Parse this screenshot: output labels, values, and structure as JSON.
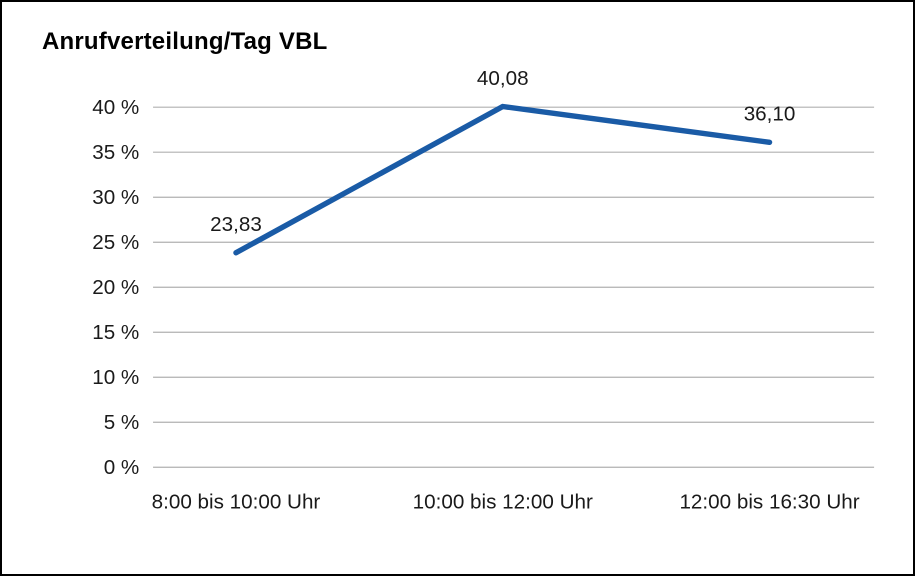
{
  "chart_data": {
    "type": "line",
    "title": "Anrufverteilung/Tag VBL",
    "categories": [
      "8:00 bis 10:00 Uhr",
      "10:00 bis 12:00 Uhr",
      "12:00 bis 16:30 Uhr"
    ],
    "values": [
      23.83,
      40.08,
      36.1
    ],
    "value_labels": [
      "23,83",
      "40,08",
      "36,10"
    ],
    "ylim": [
      0,
      40
    ],
    "ytick_step": 5,
    "ytick_labels": [
      "0 %",
      "5 %",
      "10 %",
      "15 %",
      "20 %",
      "25 %",
      "30 %",
      "35 %",
      "40 %"
    ],
    "grid": true,
    "legend": "none",
    "colors": {
      "line": "#1A5BA6",
      "grid": "#b0b0b0",
      "text": "#1a1a1a",
      "frame_border": "#000000"
    }
  }
}
